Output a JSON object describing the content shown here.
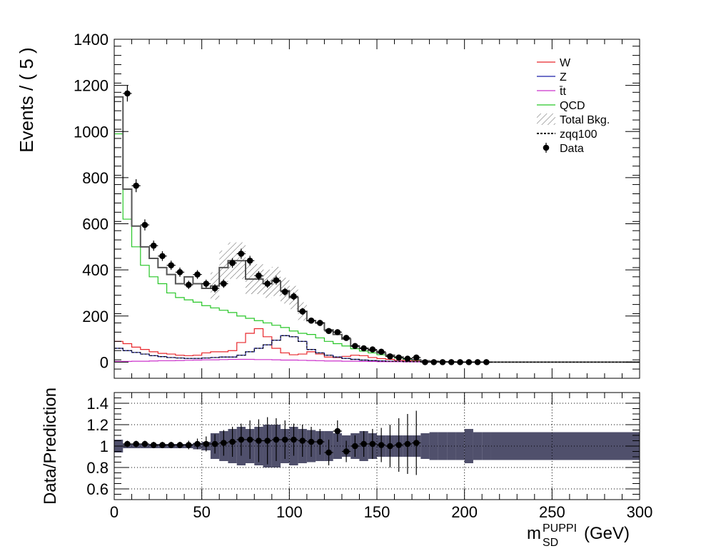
{
  "chart_data": [
    {
      "type": "line",
      "panel": "main",
      "ylabel": "Events / ( 5 )",
      "xlim": [
        0,
        300
      ],
      "ylim": [
        -70,
        1400
      ],
      "x_ticks": [
        "0",
        "50",
        "100",
        "150",
        "200",
        "250",
        "300"
      ],
      "y_ticks": [
        "0",
        "200",
        "400",
        "600",
        "800",
        "1000",
        "1200",
        "1400"
      ],
      "bin_width": 5,
      "legend": {
        "placement": "top-right",
        "entries": [
          "W",
          "Z",
          "t̄t",
          "QCD",
          "Total Bkg.",
          "zqq100",
          "Data"
        ]
      },
      "series": [
        {
          "name": "W",
          "color": "#e8262b",
          "values": [
            90,
            80,
            65,
            55,
            45,
            38,
            35,
            30,
            28,
            30,
            40,
            45,
            45,
            50,
            85,
            125,
            145,
            110,
            60,
            40,
            32,
            35,
            45,
            35,
            22,
            20,
            25,
            30,
            28,
            20,
            15,
            12,
            8,
            6,
            5,
            4,
            3,
            2,
            2,
            1,
            1,
            0,
            0,
            0,
            0,
            0
          ]
        },
        {
          "name": "Z",
          "color": "#1b1ea8",
          "values": [
            60,
            50,
            42,
            35,
            28,
            24,
            20,
            18,
            16,
            16,
            18,
            20,
            22,
            22,
            30,
            45,
            60,
            75,
            95,
            115,
            110,
            90,
            55,
            40,
            30,
            22,
            16,
            12,
            9,
            7,
            5,
            4,
            3,
            2,
            2,
            1,
            1,
            1,
            0,
            0,
            0,
            0,
            0,
            0,
            0,
            0
          ]
        },
        {
          "name": "t̄t",
          "color": "#cc33cc",
          "values": [
            3,
            3,
            4,
            4,
            5,
            6,
            6,
            7,
            8,
            9,
            10,
            10,
            11,
            12,
            12,
            12,
            11,
            11,
            10,
            9,
            9,
            8,
            7,
            6,
            5,
            5,
            4,
            4,
            3,
            3,
            2,
            2,
            2,
            1,
            1,
            1,
            1,
            0,
            0,
            0,
            0,
            0,
            0,
            0,
            0,
            0
          ]
        },
        {
          "name": "QCD",
          "color": "#27c627",
          "values": [
            990,
            620,
            500,
            420,
            370,
            340,
            300,
            280,
            270,
            260,
            245,
            235,
            225,
            215,
            200,
            190,
            180,
            170,
            160,
            150,
            135,
            125,
            120,
            105,
            90,
            80,
            70,
            58,
            48,
            40,
            32,
            25,
            18,
            12,
            8,
            5,
            3,
            2,
            1,
            0,
            0,
            0,
            0,
            0,
            0,
            0
          ]
        },
        {
          "name": "Total Bkg.",
          "color": "#555555",
          "values": [
            1150,
            750,
            590,
            500,
            450,
            410,
            380,
            340,
            370,
            340,
            320,
            330,
            410,
            440,
            440,
            360,
            360,
            340,
            350,
            310,
            280,
            220,
            180,
            170,
            140,
            120,
            100,
            70,
            60,
            50,
            40,
            30,
            22,
            15,
            10,
            6,
            4,
            2,
            1,
            0,
            0,
            0,
            0,
            0,
            0,
            0
          ]
        },
        {
          "name": "zqq100",
          "color": "#000000",
          "values": [
            60,
            50,
            42,
            35,
            28,
            24,
            20,
            18,
            16,
            16,
            18,
            20,
            22,
            22,
            30,
            45,
            60,
            75,
            95,
            115,
            110,
            90,
            55,
            40,
            30,
            22,
            16,
            12,
            9,
            7,
            5,
            4,
            3,
            2,
            2,
            1,
            1,
            1,
            0,
            0,
            0,
            0,
            0,
            0,
            0,
            0
          ]
        }
      ],
      "data_points": {
        "name": "Data",
        "x": [
          7.5,
          12.5,
          17.5,
          22.5,
          27.5,
          32.5,
          37.5,
          42.5,
          47.5,
          52.5,
          57.5,
          62.5,
          67.5,
          72.5,
          77.5,
          82.5,
          87.5,
          92.5,
          97.5,
          102.5,
          107.5,
          112.5,
          117.5,
          122.5,
          127.5,
          132.5,
          137.5,
          142.5,
          147.5,
          152.5,
          157.5,
          162.5,
          167.5,
          172.5,
          177.5,
          182.5,
          187.5,
          192.5,
          197.5,
          202.5,
          207.5,
          212.5
        ],
        "y": [
          1165,
          765,
          595,
          505,
          460,
          420,
          390,
          335,
          380,
          340,
          320,
          340,
          430,
          470,
          440,
          375,
          340,
          355,
          305,
          285,
          220,
          180,
          170,
          135,
          130,
          105,
          70,
          60,
          55,
          45,
          25,
          20,
          15,
          20,
          0,
          0,
          0,
          0,
          0,
          0,
          0,
          0
        ],
        "err": [
          35,
          28,
          24,
          22,
          21,
          20,
          20,
          18,
          19,
          18,
          18,
          18,
          21,
          22,
          21,
          19,
          18,
          19,
          17,
          17,
          15,
          13,
          13,
          12,
          11,
          10,
          8,
          8,
          7,
          7,
          5,
          5,
          4,
          5,
          0,
          0,
          0,
          0,
          0,
          0,
          0,
          0
        ]
      },
      "hatched_band": {
        "series": "Total Bkg.",
        "x_range": [
          55,
          110
        ],
        "rel_unc": 0.18
      }
    },
    {
      "type": "scatter",
      "panel": "ratio",
      "xlabel": "m_SD^PUPPI (GeV)",
      "xlabel_main": "m",
      "xlabel_sup": "PUPPI",
      "xlabel_sub": "SD",
      "xlabel_unit": " (GeV)",
      "ylabel": "Data/Prediction",
      "xlim": [
        0,
        300
      ],
      "ylim": [
        0.5,
        1.5
      ],
      "x_ticks": [
        "0",
        "50",
        "100",
        "150",
        "200",
        "250",
        "300"
      ],
      "y_ticks": [
        "0.6",
        "0.8",
        "1",
        "1.2",
        "1.4"
      ],
      "grid": true,
      "x": [
        7.5,
        12.5,
        17.5,
        22.5,
        27.5,
        32.5,
        37.5,
        42.5,
        47.5,
        52.5,
        57.5,
        62.5,
        67.5,
        72.5,
        77.5,
        82.5,
        87.5,
        92.5,
        97.5,
        102.5,
        107.5,
        112.5,
        117.5,
        122.5,
        127.5,
        132.5,
        137.5,
        142.5,
        147.5,
        152.5,
        157.5,
        162.5,
        167.5,
        172.5
      ],
      "y": [
        1.02,
        1.02,
        1.02,
        1.01,
        1.01,
        1.01,
        1.01,
        1.01,
        1.02,
        1.02,
        1.02,
        1.03,
        1.04,
        1.06,
        1.06,
        1.05,
        1.05,
        1.06,
        1.06,
        1.06,
        1.05,
        1.04,
        1.04,
        0.94,
        1.14,
        0.95,
        1.0,
        1.02,
        1.02,
        1.01,
        1.0,
        1.01,
        1.02,
        1.03
      ],
      "err": [
        0.03,
        0.03,
        0.03,
        0.03,
        0.03,
        0.03,
        0.03,
        0.04,
        0.05,
        0.07,
        0.09,
        0.12,
        0.14,
        0.15,
        0.18,
        0.2,
        0.22,
        0.2,
        0.18,
        0.15,
        0.15,
        0.14,
        0.12,
        0.12,
        0.1,
        0.1,
        0.1,
        0.12,
        0.14,
        0.16,
        0.2,
        0.25,
        0.28,
        0.3
      ],
      "band": {
        "x_edges": [
          0,
          5,
          10,
          15,
          20,
          25,
          30,
          35,
          40,
          45,
          50,
          55,
          60,
          65,
          70,
          75,
          80,
          85,
          90,
          95,
          100,
          105,
          110,
          115,
          120,
          125,
          130,
          135,
          140,
          145,
          150,
          155,
          160,
          165,
          170,
          175,
          180,
          185,
          190,
          195,
          200,
          205,
          210,
          215,
          300
        ],
        "rel_unc": [
          0.06,
          0.02,
          0.02,
          0.02,
          0.02,
          0.02,
          0.02,
          0.02,
          0.02,
          0.03,
          0.04,
          0.12,
          0.14,
          0.16,
          0.18,
          0.16,
          0.18,
          0.2,
          0.2,
          0.16,
          0.18,
          0.16,
          0.15,
          0.14,
          0.14,
          0.12,
          0.1,
          0.12,
          0.14,
          0.12,
          0.1,
          0.1,
          0.1,
          0.1,
          0.1,
          0.12,
          0.13,
          0.13,
          0.13,
          0.13,
          0.16,
          0.13,
          0.13,
          0.13
        ]
      }
    }
  ]
}
